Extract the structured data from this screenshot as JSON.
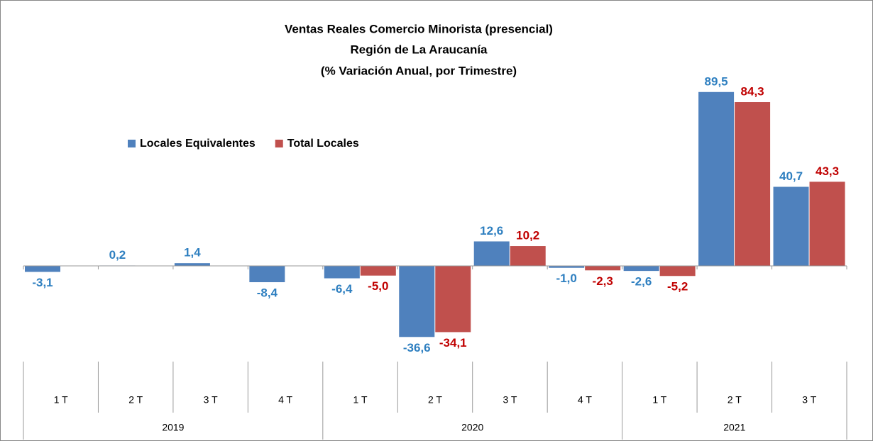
{
  "chart_data": {
    "type": "bar",
    "title": [
      "Ventas Reales Comercio Minorista  (presencial)",
      "Región de La Araucanía",
      "(% Variación Anual, por Trimestre)"
    ],
    "categories": [
      "1 T",
      "2 T",
      "3 T",
      "4 T",
      "1 T",
      "2 T",
      "3 T",
      "4 T",
      "1 T",
      "2 T",
      "3 T"
    ],
    "groups": [
      {
        "label": "2019",
        "span": 4
      },
      {
        "label": "2020",
        "span": 4
      },
      {
        "label": "2021",
        "span": 3
      }
    ],
    "series": [
      {
        "name": "Locales Equivalentes",
        "color": "#4f81bd",
        "label_color": "#2e7fc0",
        "values": [
          -3.1,
          0.2,
          1.4,
          -8.4,
          -6.4,
          -36.6,
          12.6,
          -1.0,
          -2.6,
          89.5,
          40.7
        ],
        "value_labels": [
          "-3,1",
          "0,2",
          "1,4",
          "-8,4",
          "-6,4",
          "-36,6",
          "12,6",
          "-1,0",
          "-2,6",
          "89,5",
          "40,7"
        ]
      },
      {
        "name": "Total Locales",
        "color": "#c0504d",
        "label_color": "#c00000",
        "values": [
          null,
          null,
          null,
          null,
          -5.0,
          -34.1,
          10.2,
          -2.3,
          -5.2,
          84.3,
          43.3
        ],
        "value_labels": [
          null,
          null,
          null,
          null,
          "-5,0",
          "-34,1",
          "10,2",
          "-2,3",
          "-5,2",
          "84,3",
          "43,3"
        ]
      }
    ],
    "ylim": [
      -50,
      100
    ]
  }
}
